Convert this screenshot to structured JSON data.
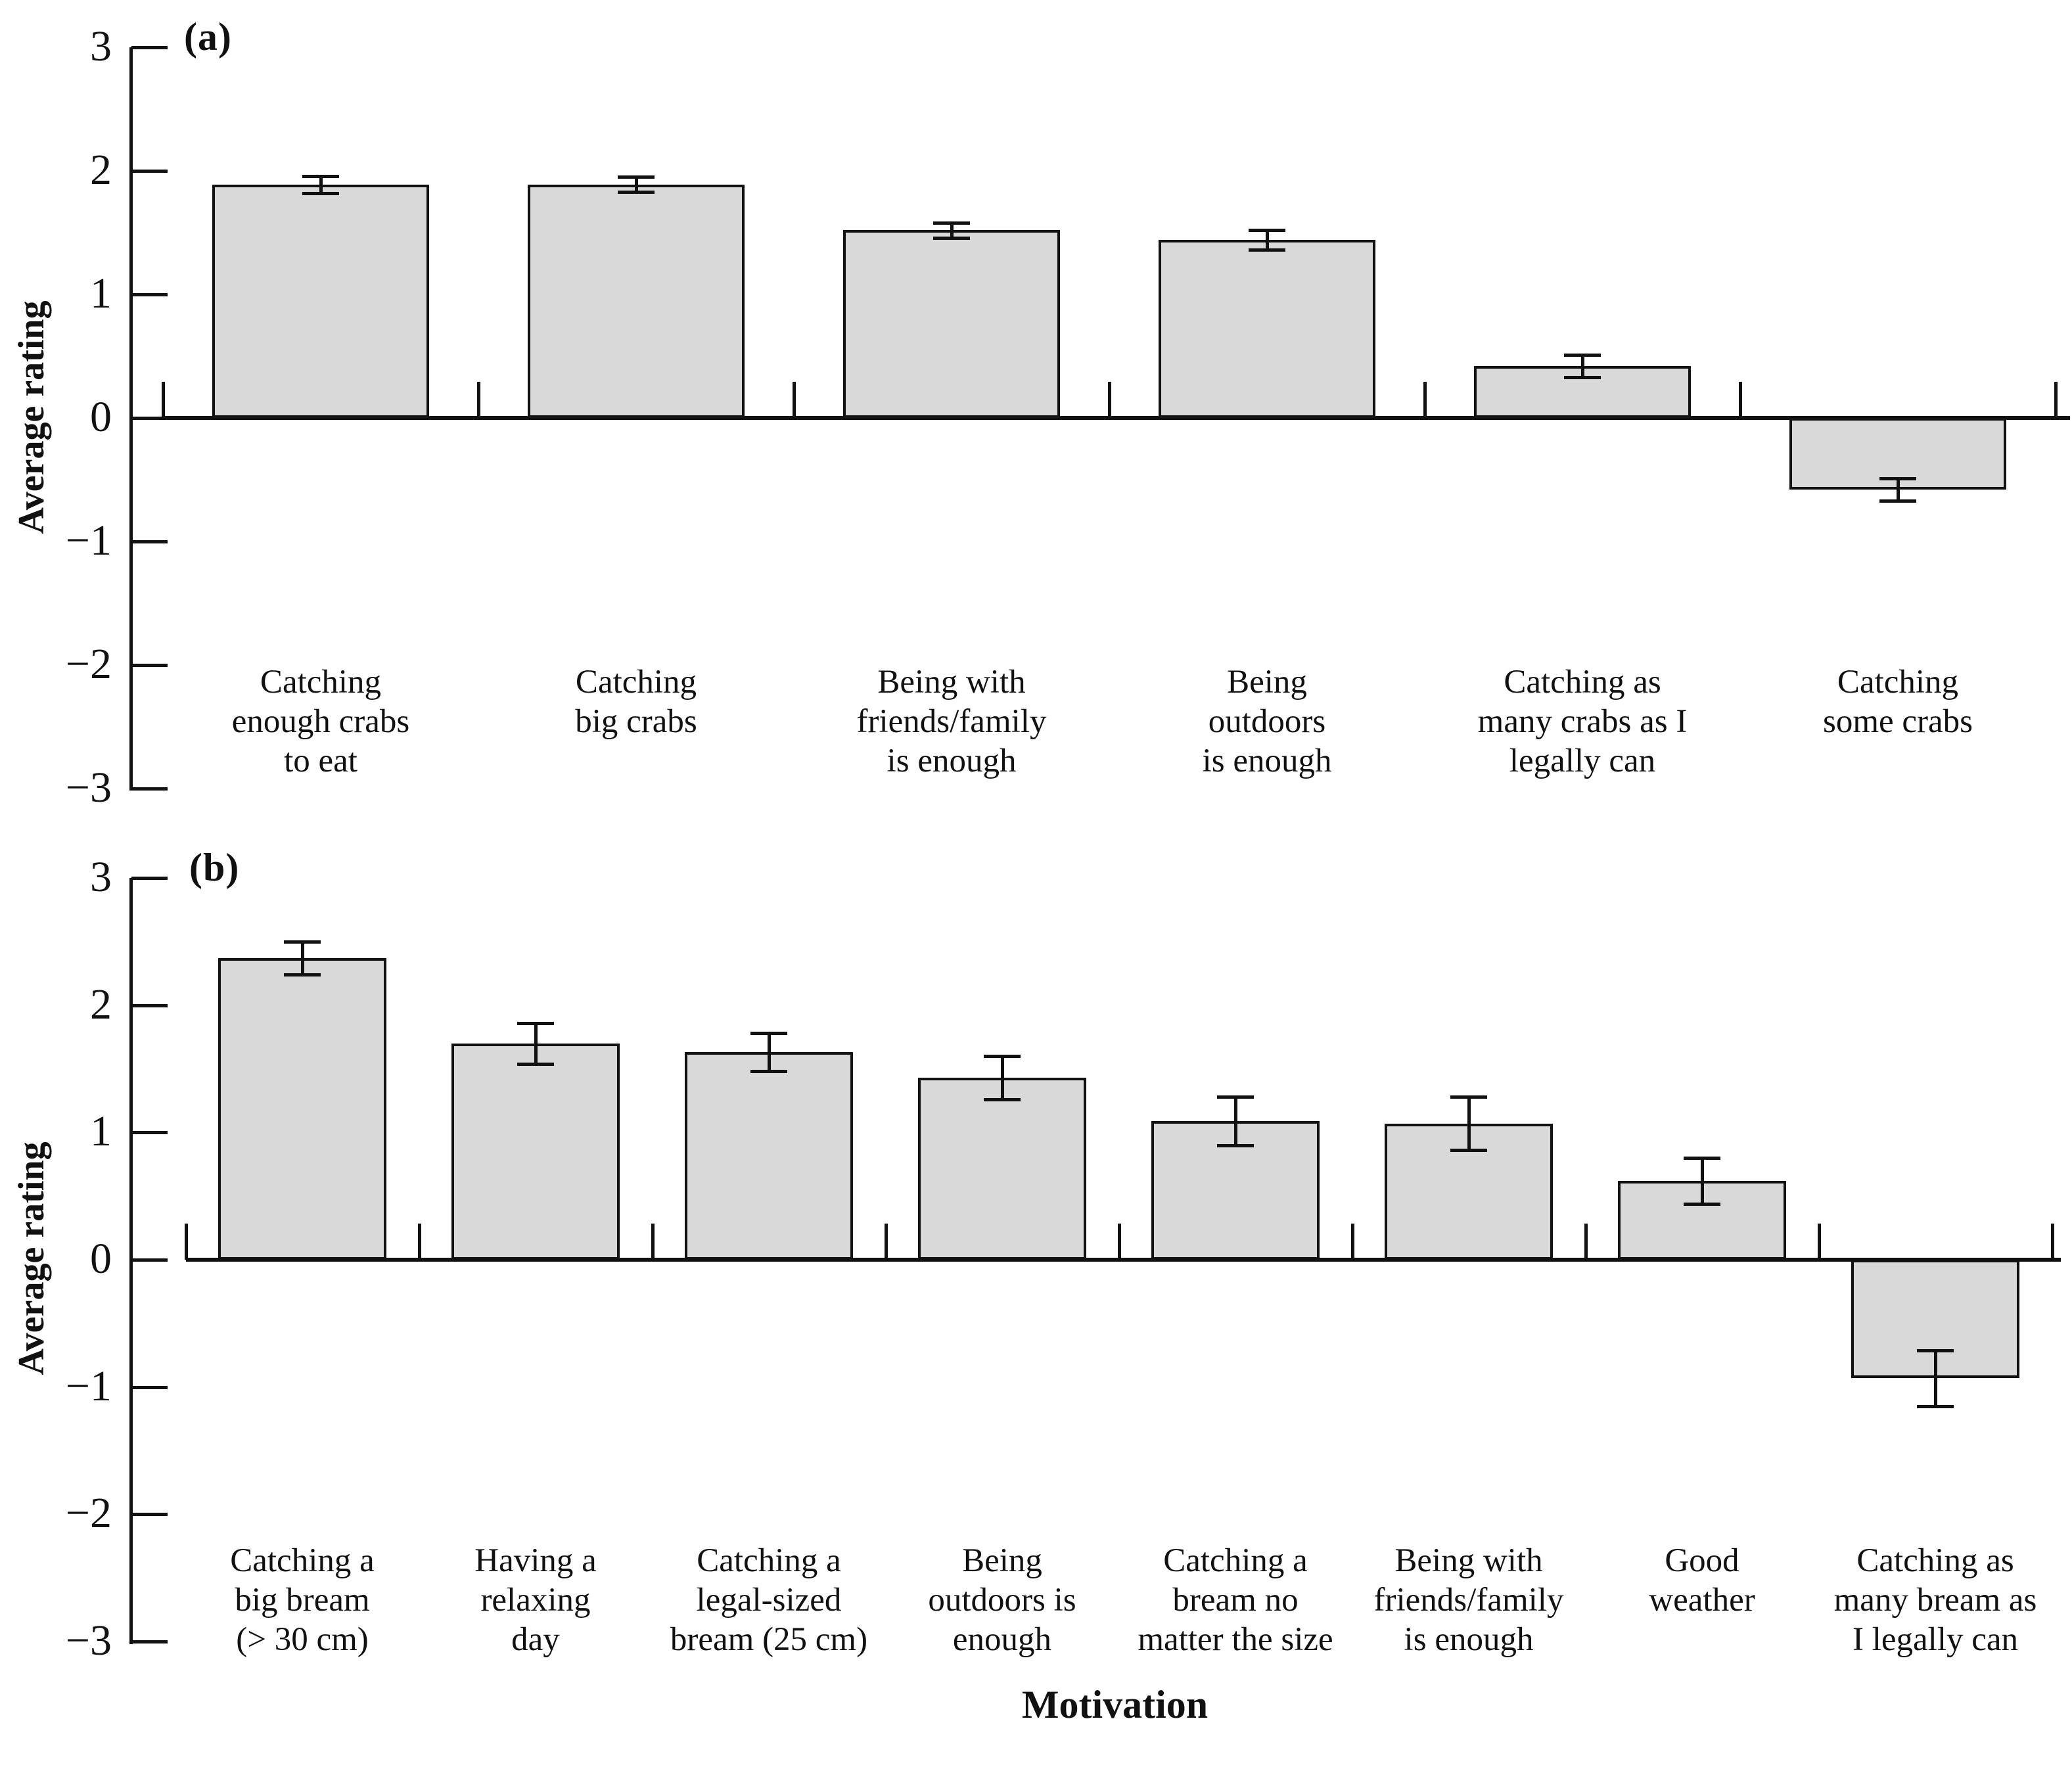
{
  "figure": {
    "xlabel": "Motivation",
    "ylabel": "Average rating",
    "background_color": "#ffffff",
    "text_color": "#111111"
  },
  "chart_data": [
    {
      "type": "bar",
      "panel_label": "(a)",
      "ylabel": "Average rating",
      "xlabel": "Motivation",
      "ylim": [
        -3,
        3
      ],
      "yticks": [
        3,
        2,
        1,
        0,
        -1,
        -2,
        -3
      ],
      "grid": false,
      "legend": false,
      "bar_color": "#d9d9d9",
      "bar_edge_color": "#121212",
      "error_bar_color": "#111111",
      "categories": [
        "Catching\nenough crabs\nto eat",
        "Catching\nbig crabs",
        "Being with\nfriends/family\nis enough",
        "Being\noutdoors\nis enough",
        "Catching as\nmany crabs as I\nlegally can",
        "Catching\nsome crabs"
      ],
      "values": [
        1.89,
        1.89,
        1.52,
        1.44,
        0.42,
        -0.58
      ],
      "errors": [
        0.07,
        0.06,
        0.06,
        0.08,
        0.09,
        0.09
      ]
    },
    {
      "type": "bar",
      "panel_label": "(b)",
      "ylabel": "Average rating",
      "xlabel": "Motivation",
      "ylim": [
        -3,
        3
      ],
      "yticks": [
        3,
        2,
        1,
        0,
        -1,
        -2,
        -3
      ],
      "grid": false,
      "legend": false,
      "bar_color": "#d9d9d9",
      "bar_edge_color": "#121212",
      "error_bar_color": "#111111",
      "categories": [
        "Catching a\nbig bream\n(> 30 cm)",
        "Having a\nrelaxing\nday",
        "Catching a\nlegal-sized\nbream (25 cm)",
        "Being\noutdoors is\nenough",
        "Catching a\nbream no\nmatter the size",
        "Being with\nfriends/family\nis enough",
        "Good\nweather",
        "Catching as\nmany bream as\nI legally can"
      ],
      "values": [
        2.37,
        1.7,
        1.63,
        1.43,
        1.09,
        1.07,
        0.62,
        -0.93
      ],
      "errors": [
        0.13,
        0.16,
        0.15,
        0.17,
        0.19,
        0.21,
        0.18,
        0.22
      ]
    }
  ]
}
